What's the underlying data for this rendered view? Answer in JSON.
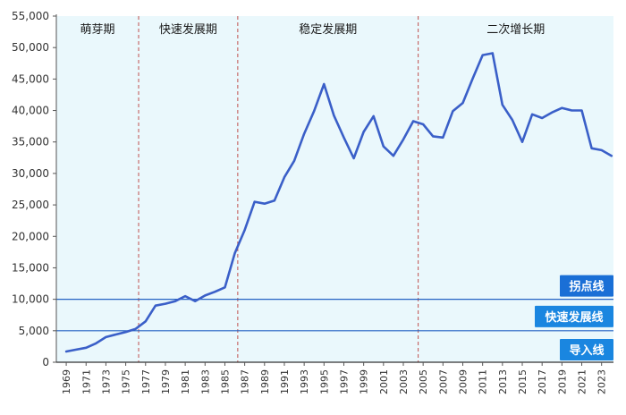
{
  "chart_data": {
    "type": "line",
    "title": "",
    "xlabel": "",
    "ylabel": "",
    "ylim": [
      0,
      55000
    ],
    "yticks": [
      0,
      5000,
      10000,
      15000,
      20000,
      25000,
      30000,
      35000,
      40000,
      45000,
      50000,
      55000
    ],
    "ytick_labels": [
      "0",
      "5,000",
      "10,000",
      "15,000",
      "20,000",
      "25,000",
      "30,000",
      "35,000",
      "40,000",
      "45,000",
      "50,000",
      "55,000"
    ],
    "xlim": [
      1968,
      2024.2
    ],
    "xtick_labels": [
      "1969",
      "1971",
      "1973",
      "1975",
      "1977",
      "1979",
      "1981",
      "1983",
      "1985",
      "1987",
      "1989",
      "1991",
      "1993",
      "1995",
      "1997",
      "1999",
      "2001",
      "2003",
      "2005",
      "2007",
      "2009",
      "2011",
      "2013",
      "2015",
      "2017",
      "2019",
      "2021",
      "2023"
    ],
    "x": [
      1969,
      1970,
      1971,
      1972,
      1973,
      1974,
      1975,
      1976,
      1977,
      1978,
      1979,
      1980,
      1981,
      1982,
      1983,
      1984,
      1985,
      1986,
      1987,
      1988,
      1989,
      1990,
      1991,
      1992,
      1993,
      1994,
      1995,
      1996,
      1997,
      1998,
      1999,
      2000,
      2001,
      2002,
      2003,
      2004,
      2005,
      2006,
      2007,
      2008,
      2009,
      2010,
      2011,
      2012,
      2013,
      2014,
      2015,
      2016,
      2017,
      2018,
      2019,
      2020,
      2021,
      2022,
      2023,
      2024
    ],
    "series": [
      {
        "color": "#3a5fc8",
        "values": [
          1700,
          2000,
          2300,
          3000,
          4000,
          4400,
          4800,
          5300,
          6500,
          9000,
          9300,
          9700,
          10500,
          9700,
          10600,
          11200,
          11900,
          17300,
          21000,
          25500,
          25200,
          25700,
          29400,
          32000,
          36300,
          39900,
          44200,
          39200,
          35700,
          32400,
          36600,
          39100,
          34300,
          32800,
          35400,
          38300,
          37800,
          35900,
          35700,
          39900,
          41200,
          45100,
          48800,
          49100,
          40900,
          38500,
          35000,
          39400,
          38800,
          39700,
          40400,
          40000,
          40000,
          34000,
          33700,
          32800
        ]
      }
    ],
    "phases": [
      {
        "label": "萌芽期",
        "start": 1968,
        "end": 1976.3
      },
      {
        "label": "快速发展期",
        "start": 1976.3,
        "end": 1986.3
      },
      {
        "label": "稳定发展期",
        "start": 1986.3,
        "end": 2004.5
      },
      {
        "label": "二次增长期",
        "start": 2004.5,
        "end": 2024.2
      }
    ],
    "phase_dividers": [
      1976.3,
      1986.3,
      2004.5
    ],
    "phase_bg_color": "#eaf8fc",
    "divider_color": "#c0504d",
    "threshold_lines": [
      {
        "label": "拐点线",
        "value": 10000,
        "color": "#2563c4",
        "badge_color": "#1a6fd6"
      },
      {
        "label": "快速发展线",
        "value": 5000,
        "color": "#2563c4",
        "badge_color": "#1a86e0"
      },
      {
        "label": "导入线",
        "value": 0,
        "color": "#2563c4",
        "badge_color": "#1a86e0"
      }
    ]
  }
}
